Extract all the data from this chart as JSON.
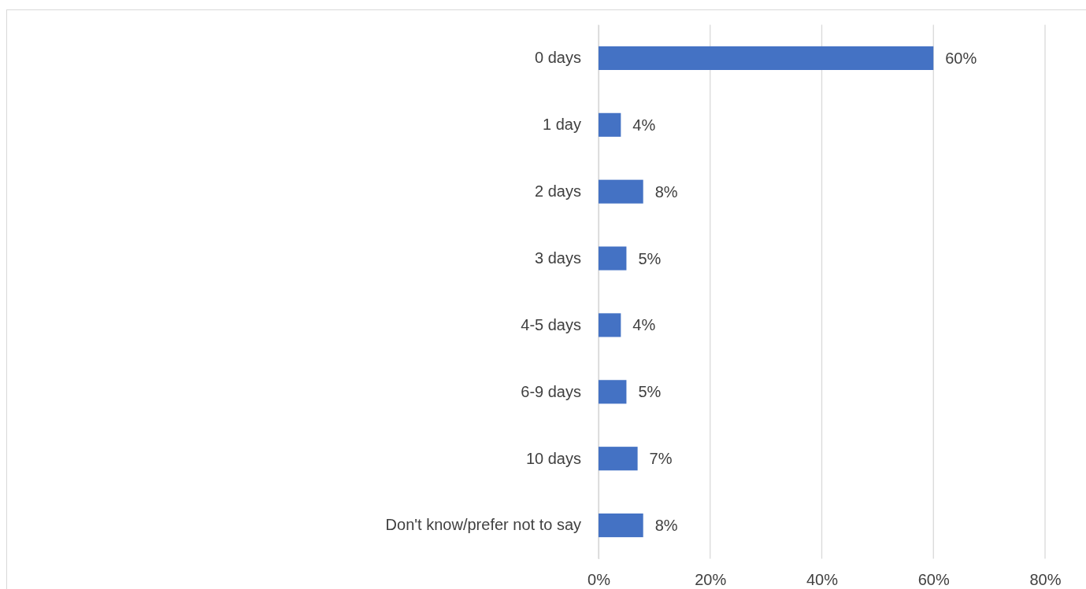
{
  "chart_data": {
    "type": "bar",
    "orientation": "horizontal",
    "categories": [
      "0 days",
      "1 day",
      "2 days",
      "3 days",
      "4-5 days",
      "6-9 days",
      "10 days",
      "Don't know/prefer not to say"
    ],
    "values": [
      60,
      4,
      8,
      5,
      4,
      5,
      7,
      8
    ],
    "value_labels": [
      "60%",
      "4%",
      "8%",
      "5%",
      "4%",
      "5%",
      "7%",
      "8%"
    ],
    "color": "#4472c4",
    "xlim": [
      0,
      80
    ],
    "xticks": [
      {
        "value": 0,
        "label": "0%"
      },
      {
        "value": 20,
        "label": "20%"
      },
      {
        "value": 40,
        "label": "40%"
      },
      {
        "value": 60,
        "label": "60%"
      },
      {
        "value": 80,
        "label": "80%"
      }
    ],
    "grid": "x"
  }
}
